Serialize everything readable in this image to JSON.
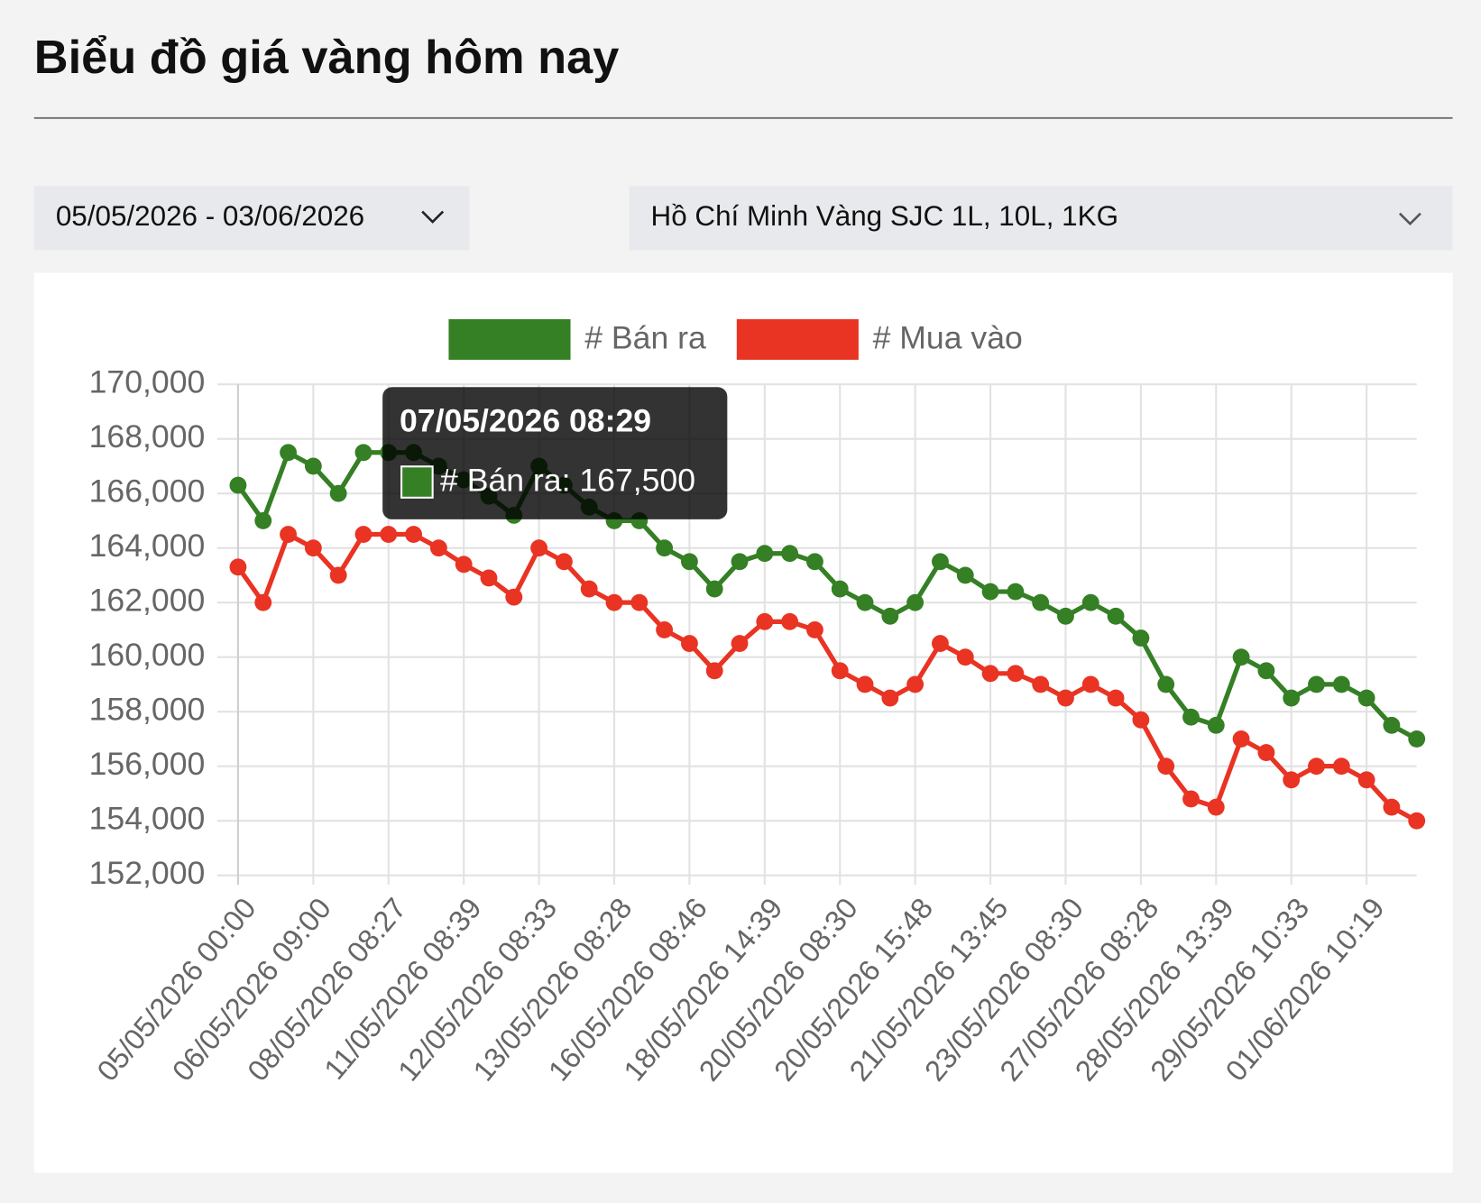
{
  "header": {
    "title": "Biểu đồ giá vàng hôm nay",
    "date_range": "05/05/2026 - 03/06/2026",
    "product": "Hồ Chí Minh Vàng SJC 1L, 10L, 1KG"
  },
  "chart_data": {
    "type": "line",
    "categories": [
      "05/05/2026 00:00",
      null,
      null,
      "06/05/2026 09:00",
      null,
      null,
      "08/05/2026 08:27",
      null,
      null,
      "11/05/2026 08:39",
      null,
      null,
      "12/05/2026 08:33",
      null,
      null,
      "13/05/2026 08:28",
      null,
      null,
      "16/05/2026 08:46",
      null,
      null,
      "18/05/2026 14:39",
      null,
      null,
      "20/05/2026 08:30",
      null,
      null,
      "20/05/2026 15:48",
      null,
      null,
      "21/05/2026 13:45",
      null,
      null,
      "23/05/2026 08:30",
      null,
      null,
      "27/05/2026 08:28",
      null,
      null,
      "28/05/2026 13:39",
      null,
      null,
      "29/05/2026 10:33",
      null,
      null,
      "01/06/2026 10:19",
      null,
      null
    ],
    "series": [
      {
        "name": "# Bán ra",
        "color": "#357f25",
        "values": [
          166300,
          165000,
          167500,
          167000,
          166000,
          167500,
          167500,
          167500,
          167000,
          166500,
          165900,
          165200,
          167000,
          166300,
          165500,
          165000,
          165000,
          164000,
          163500,
          162500,
          163500,
          163800,
          163800,
          163500,
          162500,
          162000,
          161500,
          162000,
          163500,
          163000,
          162400,
          162400,
          162000,
          161500,
          162000,
          161500,
          160700,
          159000,
          157800,
          157500,
          160000,
          159500,
          158500,
          159000,
          159000,
          158500,
          157500,
          157000
        ]
      },
      {
        "name": "# Mua vào",
        "color": "#e93323",
        "values": [
          163300,
          162000,
          164500,
          164000,
          163000,
          164500,
          164500,
          164500,
          164000,
          163400,
          162900,
          162200,
          164000,
          163500,
          162500,
          162000,
          162000,
          161000,
          160500,
          159500,
          160500,
          161300,
          161300,
          161000,
          159500,
          159000,
          158500,
          159000,
          160500,
          160000,
          159400,
          159400,
          159000,
          158500,
          159000,
          158500,
          157700,
          156000,
          154800,
          154500,
          157000,
          156500,
          155500,
          156000,
          156000,
          155500,
          154500,
          154000
        ]
      }
    ],
    "ylim": [
      152000,
      170000
    ],
    "yticks": [
      {
        "value": 152000,
        "label": "152,000"
      },
      {
        "value": 154000,
        "label": "154,000"
      },
      {
        "value": 156000,
        "label": "156,000"
      },
      {
        "value": 158000,
        "label": "158,000"
      },
      {
        "value": 160000,
        "label": "160,000"
      },
      {
        "value": 162000,
        "label": "162,000"
      },
      {
        "value": 164000,
        "label": "164,000"
      },
      {
        "value": 166000,
        "label": "166,000"
      },
      {
        "value": 168000,
        "label": "168,000"
      },
      {
        "value": 170000,
        "label": "170,000"
      }
    ],
    "grid": true,
    "legend": "top",
    "tooltip": {
      "title": "07/05/2026 08:29",
      "label": "# Bán ra: 167,500"
    }
  }
}
